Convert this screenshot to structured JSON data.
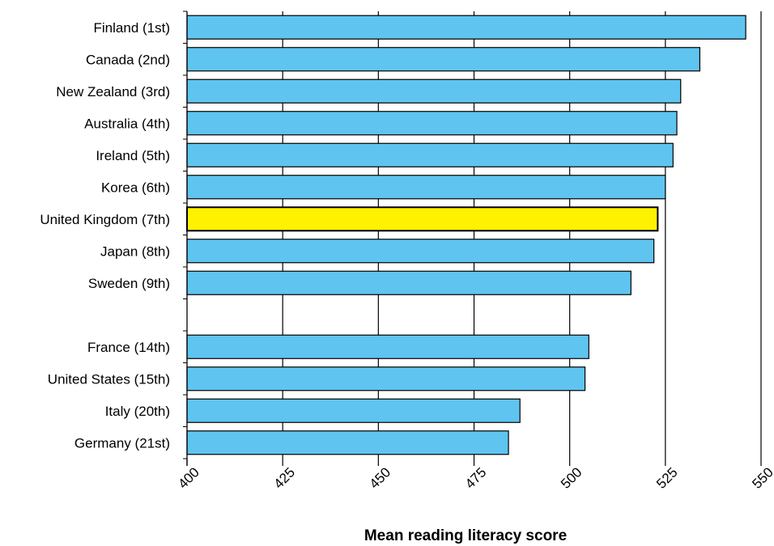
{
  "chart_data": {
    "type": "bar",
    "orientation": "horizontal",
    "title": "",
    "xlabel": "Mean reading literacy score",
    "ylabel": "",
    "xlim": [
      400,
      550
    ],
    "xticks": [
      400,
      425,
      450,
      475,
      500,
      525,
      550
    ],
    "grid": "vertical",
    "categories": [
      "Finland (1st)",
      "Canada (2nd)",
      "New Zealand (3rd)",
      "Australia (4th)",
      "Ireland (5th)",
      "Korea (6th)",
      "United Kingdom (7th)",
      "Japan (8th)",
      "Sweden (9th)",
      "",
      "France (14th)",
      "United States (15th)",
      "Italy (20th)",
      "Germany (21st)"
    ],
    "values": [
      546,
      534,
      529,
      528,
      527,
      525,
      523,
      522,
      516,
      null,
      505,
      504,
      487,
      484
    ],
    "highlight_index": 6,
    "colors": {
      "bar": "#5fc4f0",
      "highlight": "#fff200",
      "stroke": "#000000",
      "grid": "#000000"
    }
  }
}
